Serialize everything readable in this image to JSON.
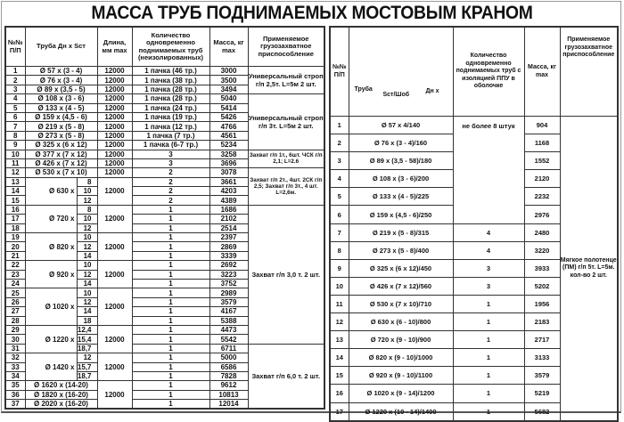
{
  "title": "МАССА ТРУБ ПОДНИМАЕМЫХ МОСТОВЫМ КРАНОМ",
  "left": {
    "headers": {
      "n": "№№ П/П",
      "pipe": "Труба Дн х Sст",
      "length": "Длина, мм max",
      "qty": "Количество одновременно поднимаемых труб (неизолированных)",
      "mass": "Масса, кг max",
      "fixture": "Применяемое грузозахватное приспособление"
    },
    "rows": [
      {
        "n": "1",
        "pipe": "Ø 57 x (3 - 4)",
        "length": "12000",
        "qty": "1 пачка (46 тр.)",
        "mass": "3000",
        "fixture": "Универсальный строп г/п 2,5т. L=5м 2 шт."
      },
      {
        "n": "2",
        "pipe": "Ø 76 x (3 - 4)",
        "length": "12000",
        "qty": "1 пачка (38 тр.)",
        "mass": "3500"
      },
      {
        "n": "3",
        "pipe": "Ø 89 x (3,5 - 5)",
        "length": "12000",
        "qty": "1 пачка (28 тр.)",
        "mass": "3494"
      },
      {
        "n": "4",
        "pipe": "Ø 108 x (3 - 6)",
        "length": "12000",
        "qty": "1 пачка (28 тр.)",
        "mass": "5040",
        "fixture": "Универсальный строп г/п 3т. L=5м 2 шт."
      },
      {
        "n": "5",
        "pipe": "Ø 133 x (4 - 5)",
        "length": "12000",
        "qty": "1 пачка (24 тр.)",
        "mass": "5414"
      },
      {
        "n": "6",
        "pipe": "Ø 159 x (4,5 - 6)",
        "length": "12000",
        "qty": "1 пачка (19 тр.)",
        "mass": "5426"
      },
      {
        "n": "7",
        "pipe": "Ø 219 x (5 - 8)",
        "length": "12000",
        "qty": "1 пачка (12 тр.)",
        "mass": "4766"
      },
      {
        "n": "8",
        "pipe": "Ø 273 x (5 - 8)",
        "length": "12000",
        "qty": "1 пачка (7 тр.)",
        "mass": "4561"
      },
      {
        "n": "9",
        "pipe": "Ø 325 x (6 x 12)",
        "length": "12000",
        "qty": "1 пачка (6-7 тр.)",
        "mass": "5234"
      },
      {
        "n": "10",
        "pipe": "Ø 377 x (7 x 12)",
        "length": "12000",
        "qty": "3",
        "mass": "3258",
        "fixture": "Захват г/п 1т., 6шт. ЧСК г/п 2,1; L=2.6"
      },
      {
        "n": "11",
        "pipe": "Ø 426 x (7 x 12)",
        "length": "12000",
        "qty": "3",
        "mass": "3696"
      },
      {
        "n": "12",
        "pipe": "Ø 530 x (7 x 10)",
        "length": "12000",
        "qty": "2",
        "mass": "3078",
        "fixture": "Захват г/п 2т., 4шт. 2СК г/п 2,5; Захват г/п 3т., 4 шт. L=2,6м."
      },
      {
        "n": "13",
        "dia": "Ø 630 x",
        "wall": "8",
        "length": "12000",
        "qty": "2",
        "mass": "3661"
      },
      {
        "n": "14",
        "wall": "10",
        "qty": "2",
        "mass": "4203"
      },
      {
        "n": "15",
        "wall": "12",
        "qty": "2",
        "mass": "4389"
      },
      {
        "n": "16",
        "dia": "Ø 720 x",
        "wall": "8",
        "length": "12000",
        "qty": "1",
        "mass": "1686",
        "fixture": "Захват г/п 3,0 т. 2 шт."
      },
      {
        "n": "17",
        "wall": "10",
        "qty": "1",
        "mass": "2102"
      },
      {
        "n": "18",
        "wall": "12",
        "qty": "1",
        "mass": "2514"
      },
      {
        "n": "19",
        "dia": "Ø 820 x",
        "wall": "10",
        "length": "12000",
        "qty": "1",
        "mass": "2397"
      },
      {
        "n": "20",
        "wall": "12",
        "qty": "1",
        "mass": "2869"
      },
      {
        "n": "21",
        "wall": "14",
        "qty": "1",
        "mass": "3339"
      },
      {
        "n": "22",
        "dia": "Ø 920 x",
        "wall": "10",
        "length": "12000",
        "qty": "1",
        "mass": "2692"
      },
      {
        "n": "23",
        "wall": "12",
        "qty": "1",
        "mass": "3223"
      },
      {
        "n": "24",
        "wall": "14",
        "qty": "1",
        "mass": "3752"
      },
      {
        "n": "25",
        "dia": "Ø 1020 x",
        "wall": "10",
        "length": "12000",
        "qty": "1",
        "mass": "2989"
      },
      {
        "n": "26",
        "wall": "12",
        "qty": "1",
        "mass": "3579"
      },
      {
        "n": "27",
        "wall": "14",
        "qty": "1",
        "mass": "4167"
      },
      {
        "n": "28",
        "wall": "18",
        "qty": "1",
        "mass": "5388"
      },
      {
        "n": "29",
        "dia": "Ø 1220 x",
        "wall": "12,4",
        "length": "12000",
        "qty": "1",
        "mass": "4473"
      },
      {
        "n": "30",
        "wall": "15,4",
        "qty": "1",
        "mass": "5542"
      },
      {
        "n": "31",
        "wall": "18,7",
        "qty": "1",
        "mass": "6711",
        "fixture": "Захват г/п 6,0 т. 2 шт."
      },
      {
        "n": "32",
        "dia": "Ø 1420 x",
        "wall": "12",
        "length": "12000",
        "qty": "1",
        "mass": "5000"
      },
      {
        "n": "33",
        "wall": "15,7",
        "qty": "1",
        "mass": "6586"
      },
      {
        "n": "34",
        "wall": "18,7",
        "qty": "1",
        "mass": "7828"
      },
      {
        "n": "35",
        "pipe": "Ø 1620 x (14-20)",
        "length": "12000",
        "qty": "1",
        "mass": "9612"
      },
      {
        "n": "36",
        "pipe": "Ø 1820 x (16-20)",
        "qty": "1",
        "mass": "10813"
      },
      {
        "n": "37",
        "pipe": "Ø 2020 x (16-20)",
        "qty": "1",
        "mass": "12014"
      }
    ]
  },
  "right": {
    "headers": {
      "n": "№№ П/П",
      "pipe_a": "Труба",
      "pipe_b": "Sст/Шоб",
      "pipe_c": "Дн х",
      "qty": "Количество одновременно поднимаемых труб с изоляцией ППУ в оболочке",
      "mass": "Масса, кг max",
      "fixture": "Применяемое грузозахватное приспособление"
    },
    "rows": [
      {
        "n": "1",
        "pipe": "Ø 57 x 4/140",
        "qty": "не более 8 штук",
        "mass": "904",
        "fixture": "Мягкое полотенце (ПМ) г/п 5т. L=5м. кол-во 2 шт."
      },
      {
        "n": "2",
        "pipe": "Ø 76 x (3 - 4)/160",
        "mass": "1168"
      },
      {
        "n": "3",
        "pipe": "Ø 89 x (3,5 - 58)/180",
        "mass": "1552"
      },
      {
        "n": "4",
        "pipe": "Ø 108 x (3 - 6)/200",
        "mass": "2120"
      },
      {
        "n": "5",
        "pipe": "Ø 133 x (4 - 5)/225",
        "mass": "2232"
      },
      {
        "n": "6",
        "pipe": "Ø 159 x (4,5 - 6)/250",
        "mass": "2976"
      },
      {
        "n": "7",
        "pipe": "Ø 219 x (5 - 8)/315",
        "qty": "4",
        "mass": "2480"
      },
      {
        "n": "8",
        "pipe": "Ø 273 x (5 - 8)/400",
        "qty": "4",
        "mass": "3220"
      },
      {
        "n": "9",
        "pipe": "Ø 325 x (6 x 12)/450",
        "qty": "3",
        "mass": "3933"
      },
      {
        "n": "10",
        "pipe": "Ø 426 x (7 x 12)/560",
        "qty": "3",
        "mass": "5202"
      },
      {
        "n": "11",
        "pipe": "Ø 530 x (7 x 10)/710",
        "qty": "1",
        "mass": "1956"
      },
      {
        "n": "12",
        "pipe": "Ø 630 x (6 - 10)/800",
        "qty": "1",
        "mass": "2183"
      },
      {
        "n": "13",
        "pipe": "Ø 720 x (9 - 10)/900",
        "qty": "1",
        "mass": "2717"
      },
      {
        "n": "14",
        "pipe": "Ø 820 x (9 - 10)/1000",
        "qty": "1",
        "mass": "3133"
      },
      {
        "n": "15",
        "pipe": "Ø 920 x (9 - 10)/1100",
        "qty": "1",
        "mass": "3579"
      },
      {
        "n": "16",
        "pipe": "Ø 1020 x (9 - 14)/1200",
        "qty": "1",
        "mass": "5219"
      },
      {
        "n": "17",
        "pipe": "Ø 1220 x (10 - 14)/1400",
        "qty": "1",
        "mass": "5682"
      }
    ]
  }
}
